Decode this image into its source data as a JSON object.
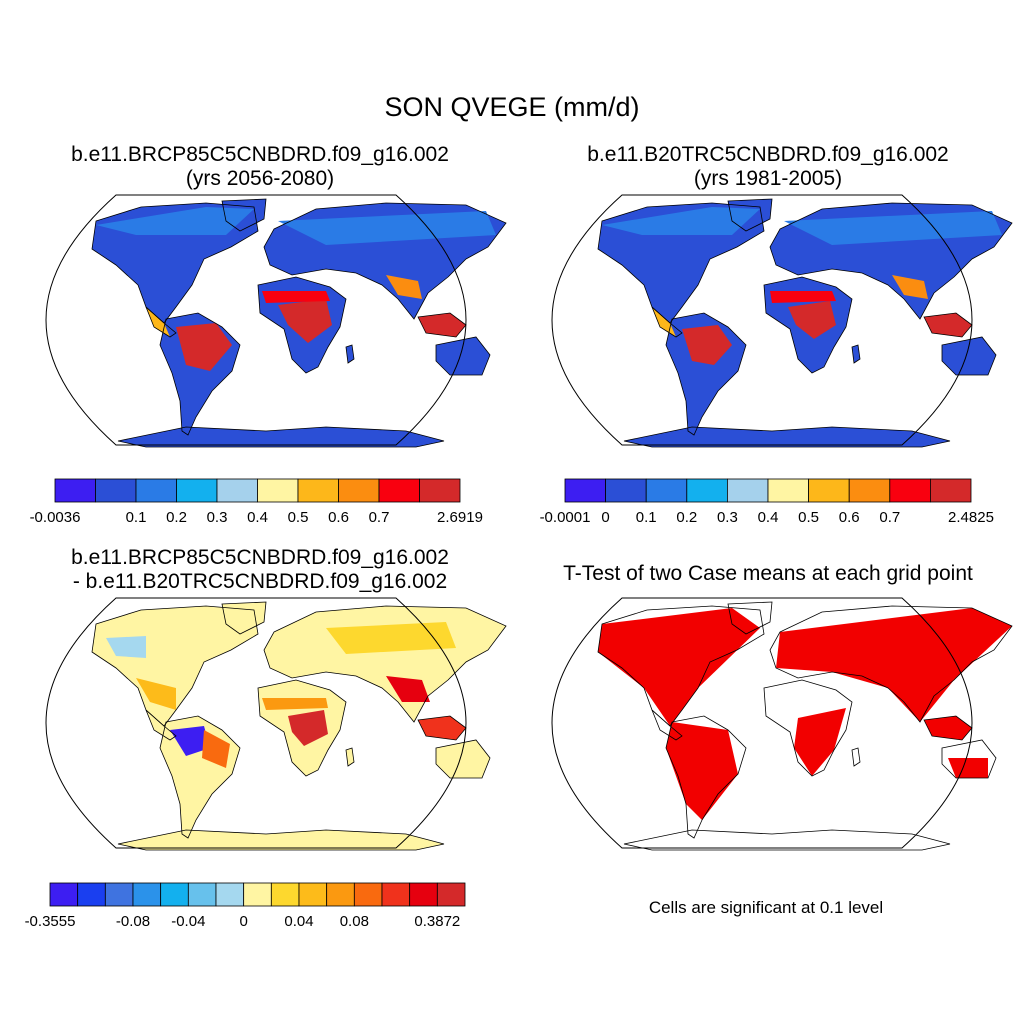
{
  "title": "SON QVEGE (mm/d)",
  "panels": [
    {
      "id": "p1",
      "line1": "b.e11.BRCP85C5CNBDRD.f09_g16.002",
      "line2": "(yrs 2056-2080)"
    },
    {
      "id": "p2",
      "line1": "b.e11.B20TRC5CNBDRD.f09_g16.002",
      "line2": "(yrs 1981-2005)"
    },
    {
      "id": "p3",
      "line1": "b.e11.BRCP85C5CNBDRD.f09_g16.002",
      "line2": "- b.e11.B20TRC5CNBDRD.f09_g16.002"
    },
    {
      "id": "p4",
      "line1": "T-Test of two Case means at each grid point",
      "line2": ""
    }
  ],
  "colorbars": [
    {
      "panel": "p1",
      "colors": [
        "#3d1ef2",
        "#2b4fd6",
        "#2a7be6",
        "#13b0ee",
        "#a5d1ec",
        "#fff5a3",
        "#fdb71a",
        "#fb8d10",
        "#f9000f",
        "#d4292a"
      ],
      "labels": [
        "-0.0036",
        "0.1",
        "0.2",
        "0.3",
        "0.4",
        "0.5",
        "0.6",
        "0.7",
        "2.6919"
      ],
      "label_boundaries": [
        0,
        2,
        3,
        4,
        5,
        6,
        7,
        8,
        10
      ]
    },
    {
      "panel": "p2",
      "colors": [
        "#3d1ef2",
        "#2b4fd6",
        "#2a7be6",
        "#13b0ee",
        "#a5d1ec",
        "#fff5a3",
        "#fdb71a",
        "#fb8d10",
        "#f9000f",
        "#d4292a"
      ],
      "labels": [
        "-0.0001",
        "0",
        "0.1",
        "0.2",
        "0.3",
        "0.4",
        "0.5",
        "0.6",
        "0.7",
        "2.4825"
      ],
      "label_boundaries": [
        0,
        1,
        2,
        3,
        4,
        5,
        6,
        7,
        8,
        10
      ]
    },
    {
      "panel": "p3",
      "colors": [
        "#3d1ef2",
        "#1a3ff0",
        "#3f73e0",
        "#2b92ea",
        "#13b0ee",
        "#67c1ec",
        "#a5d8ef",
        "#fff5a3",
        "#fdd82e",
        "#fdbb1a",
        "#fb9910",
        "#f96a0f",
        "#f0321c",
        "#e6000f",
        "#d4292a"
      ],
      "labels": [
        "-0.3555",
        "-0.08",
        "-0.04",
        "0",
        "0.04",
        "0.08",
        "0.3872"
      ],
      "label_boundaries": [
        0,
        3,
        5,
        7,
        9,
        11,
        14
      ]
    }
  ],
  "note": "Cells are significant at 0.1 level",
  "colors": {
    "ocean": "#ffffff",
    "significant": "#f20000",
    "outline": "#000000"
  }
}
